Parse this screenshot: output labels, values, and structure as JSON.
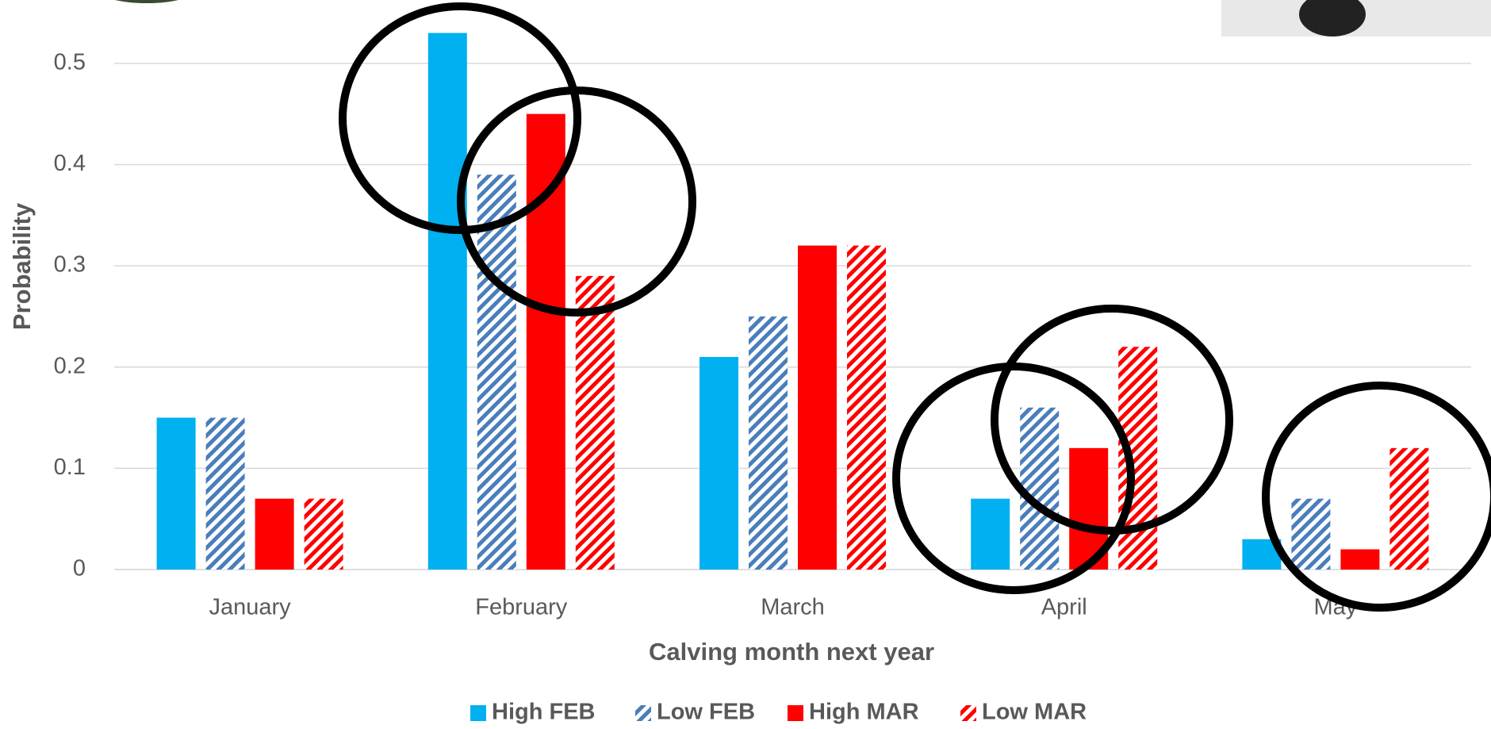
{
  "chart_data": {
    "type": "bar",
    "x_label": "Calving month next year",
    "y_label": "Probability",
    "categories": [
      "January",
      "February",
      "March",
      "April",
      "May"
    ],
    "series": [
      {
        "name": "High FEB",
        "color": "#00b0f0",
        "hatch": false,
        "values": [
          0.15,
          0.53,
          0.21,
          0.07,
          0.03
        ]
      },
      {
        "name": "Low FEB",
        "color": "#4a7ebb",
        "hatch": true,
        "values": [
          0.15,
          0.39,
          0.25,
          0.16,
          0.07
        ]
      },
      {
        "name": "High MAR",
        "color": "#ff0000",
        "hatch": false,
        "values": [
          0.07,
          0.45,
          0.32,
          0.12,
          0.02
        ]
      },
      {
        "name": "Low MAR",
        "color": "#ff0000",
        "hatch": true,
        "values": [
          0.07,
          0.29,
          0.32,
          0.22,
          0.12
        ]
      }
    ],
    "ylim": [
      0,
      0.55
    ],
    "yticks": [
      0,
      0.1,
      0.2,
      0.3,
      0.4,
      0.5
    ],
    "grid": true,
    "legend": "bottom"
  }
}
